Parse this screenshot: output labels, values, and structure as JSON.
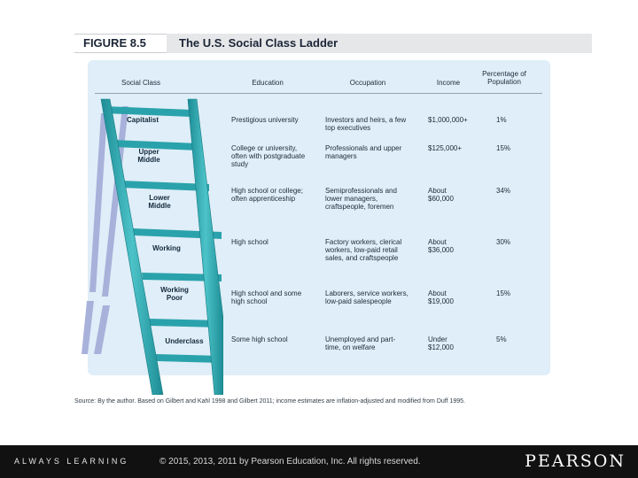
{
  "figure": {
    "label": "FIGURE 8.5",
    "title": "The U.S. Social Class Ladder"
  },
  "columns": [
    "Social Class",
    "Education",
    "Occupation",
    "Income",
    "Percentage of Population"
  ],
  "rows": [
    {
      "class": "Capitalist",
      "education": "Prestigious university",
      "occupation": "Investors and heirs, a few top executives",
      "income": "$1,000,000+",
      "percent": "1%"
    },
    {
      "class": "Upper Middle",
      "education": "College or university, often with postgraduate study",
      "occupation": "Professionals and upper managers",
      "income": "$125,000+",
      "percent": "15%"
    },
    {
      "class": "Lower Middle",
      "education": "High school or college; often apprenticeship",
      "occupation": "Semiprofessionals and lower managers, craftspeople, foremen",
      "income": "About $60,000",
      "percent": "34%"
    },
    {
      "class": "Working",
      "education": "High school",
      "occupation": "Factory workers, clerical workers, low-paid retail sales, and craftspeople",
      "income": "About $36,000",
      "percent": "30%"
    },
    {
      "class": "Working Poor",
      "education": "High school and some high school",
      "occupation": "Laborers, service workers, low-paid salespeople",
      "income": "About $19,000",
      "percent": "15%"
    },
    {
      "class": "Underclass",
      "education": "Some high school",
      "occupation": "Unemployed and part-time, on welfare",
      "income": "Under $12,000",
      "percent": "5%"
    }
  ],
  "source": "Source: By the author. Based on Gilbert and Kahl 1998 and Gilbert 2011; income estimates are inflation-adjusted and modified from Duff 1995.",
  "footer": {
    "tagline": "ALWAYS LEARNING",
    "copyright": "© 2015, 2013, 2011 by Pearson Education, Inc. All rights reserved.",
    "brand": "PEARSON"
  },
  "colors": {
    "panel": "#dfeef8",
    "ladder": "#3fb3ba",
    "ladder_dark": "#1d8c95",
    "back_ladder": "#a7b1da",
    "footer": "#111111"
  }
}
